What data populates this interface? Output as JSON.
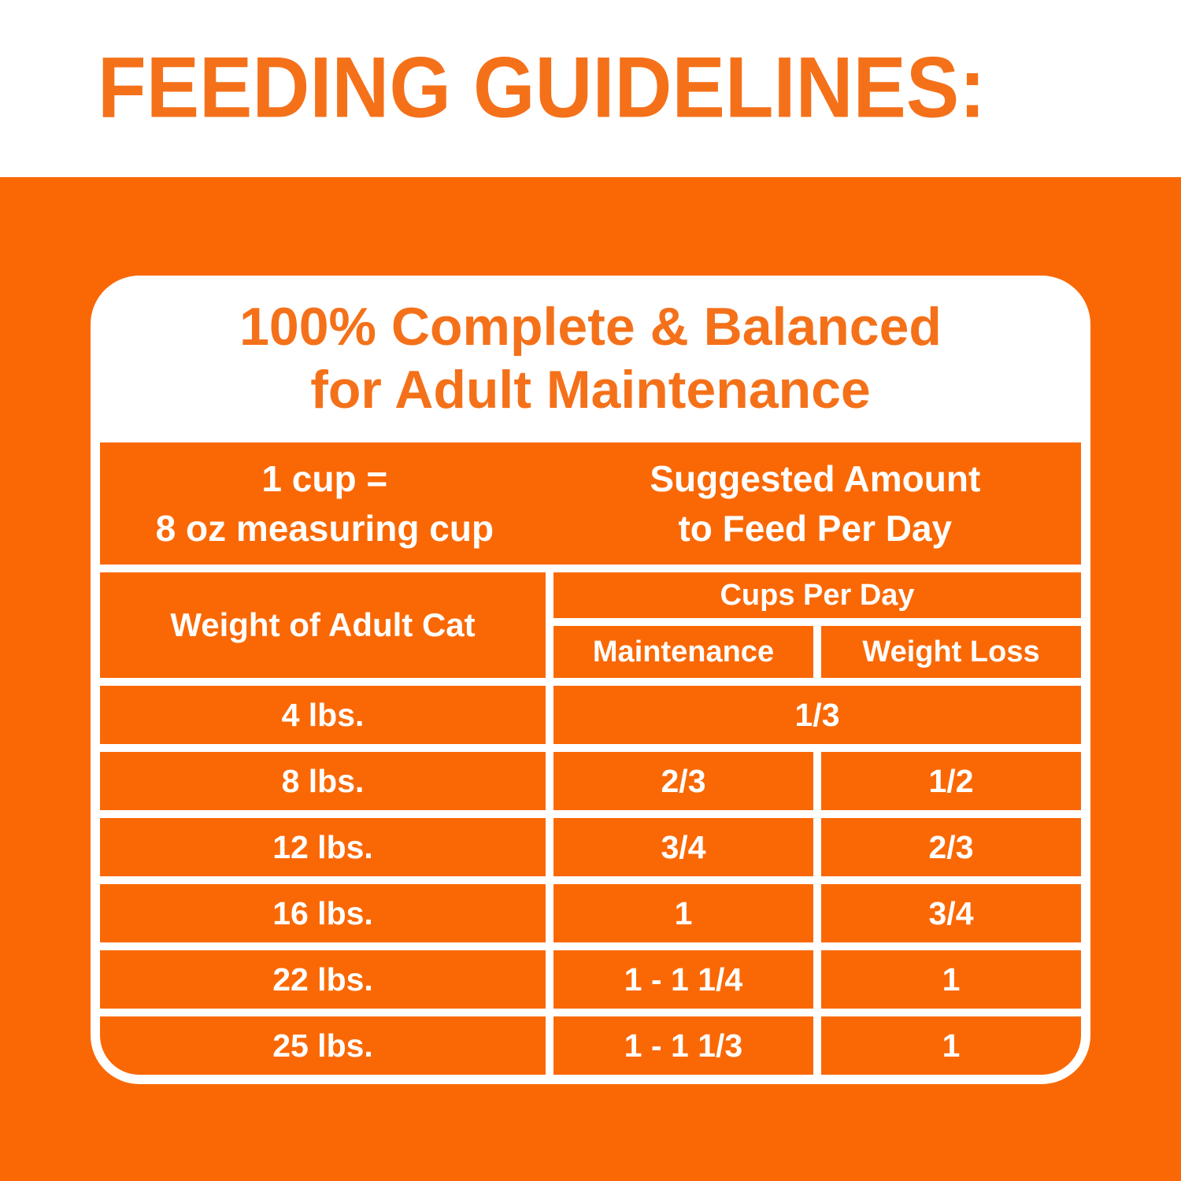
{
  "colors": {
    "orange": "#FA6805",
    "heading_orange": "#F4711A",
    "white": "#FFFFFF"
  },
  "header": {
    "title": "FEEDING GUIDELINES:"
  },
  "card": {
    "heading_line1": "100% Complete & Balanced",
    "heading_line2": "for Adult Maintenance",
    "table": {
      "cup_note_line1": "1 cup =",
      "cup_note_line2": "8 oz measuring cup",
      "amount_header_line1": "Suggested Amount",
      "amount_header_line2": "to Feed Per Day",
      "weight_col_header": "Weight of Adult Cat",
      "cups_group_header": "Cups Per Day",
      "maintenance_col_header": "Maintenance",
      "weight_loss_col_header": "Weight Loss",
      "rows": [
        {
          "weight": "4 lbs.",
          "maintenance": "1/3",
          "weight_loss": "",
          "merged": true
        },
        {
          "weight": "8 lbs.",
          "maintenance": "2/3",
          "weight_loss": "1/2",
          "merged": false
        },
        {
          "weight": "12 lbs.",
          "maintenance": "3/4",
          "weight_loss": "2/3",
          "merged": false
        },
        {
          "weight": "16 lbs.",
          "maintenance": "1",
          "weight_loss": "3/4",
          "merged": false
        },
        {
          "weight": "22 lbs.",
          "maintenance": "1 - 1 1/4",
          "weight_loss": "1",
          "merged": false
        },
        {
          "weight": "25 lbs.",
          "maintenance": "1 - 1 1/3",
          "weight_loss": "1",
          "merged": false
        }
      ]
    }
  }
}
